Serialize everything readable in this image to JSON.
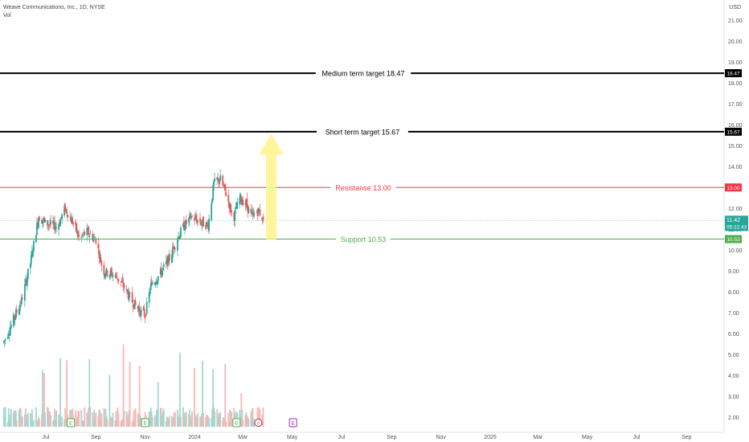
{
  "header": {
    "title": "Weave Communications, Inc., 1D, NYSE",
    "volume_label": "Vol",
    "currency": "USD"
  },
  "chart_data": {
    "type": "candlestick",
    "symbol": "Weave Communications, Inc.",
    "interval": "1D",
    "exchange": "NYSE",
    "y_ticks": [
      2.0,
      3.0,
      4.0,
      5.0,
      6.0,
      7.0,
      8.0,
      9.0,
      10.0,
      11.0,
      12.0,
      13.0,
      14.0,
      15.0,
      16.0,
      17.0,
      18.0,
      19.0,
      20.0,
      21.0
    ],
    "ylim": [
      1.55,
      21.55
    ],
    "x_ticks": [
      "Jul",
      "Sep",
      "Nov",
      "2024",
      "Mar",
      "May",
      "Jul",
      "Sep",
      "Nov",
      "2025",
      "Mar",
      "May",
      "Jul",
      "Sep"
    ],
    "x_tick_dates": [
      "2023-07-01",
      "2023-09-01",
      "2023-11-01",
      "2024-01-01",
      "2024-03-01",
      "2024-05-01",
      "2024-07-01",
      "2024-09-01",
      "2024-11-01",
      "2025-01-01",
      "2025-03-01",
      "2025-05-01",
      "2025-07-01",
      "2025-09-01"
    ],
    "price_path": [
      [
        "2023-05-10",
        5.6
      ],
      [
        "2023-05-20",
        6.5
      ],
      [
        "2023-06-01",
        7.6
      ],
      [
        "2023-06-12",
        9.4
      ],
      [
        "2023-06-22",
        11.6
      ],
      [
        "2023-07-01",
        11.3
      ],
      [
        "2023-07-15",
        11.1
      ],
      [
        "2023-07-25",
        12.0
      ],
      [
        "2023-08-05",
        11.2
      ],
      [
        "2023-08-12",
        10.5
      ],
      [
        "2023-08-20",
        10.9
      ],
      [
        "2023-09-01",
        10.5
      ],
      [
        "2023-09-10",
        9.0
      ],
      [
        "2023-09-25",
        8.8
      ],
      [
        "2023-10-05",
        8.3
      ],
      [
        "2023-10-15",
        7.6
      ],
      [
        "2023-10-25",
        7.1
      ],
      [
        "2023-11-01",
        6.9
      ],
      [
        "2023-11-08",
        8.3
      ],
      [
        "2023-11-20",
        8.9
      ],
      [
        "2023-12-01",
        9.6
      ],
      [
        "2023-12-10",
        10.5
      ],
      [
        "2023-12-18",
        11.1
      ],
      [
        "2023-12-28",
        11.6
      ],
      [
        "2024-01-10",
        11.3
      ],
      [
        "2024-01-18",
        11.2
      ],
      [
        "2024-01-25",
        13.2
      ],
      [
        "2024-02-02",
        13.4
      ],
      [
        "2024-02-10",
        12.6
      ],
      [
        "2024-02-18",
        11.5
      ],
      [
        "2024-02-26",
        12.5
      ],
      [
        "2024-03-05",
        12.2
      ],
      [
        "2024-03-12",
        11.6
      ],
      [
        "2024-03-20",
        11.9
      ],
      [
        "2024-03-27",
        11.4
      ]
    ],
    "volume_bars_approx": true,
    "last_price": "11.42",
    "countdown": "05:22:43",
    "levels": [
      {
        "name": "Medium term target",
        "value": 18.47,
        "label": "Medium term target 18.47",
        "tag": "18.47",
        "color": "#000000"
      },
      {
        "name": "Short term target",
        "value": 15.67,
        "label": "Short term target 15.67",
        "tag": "15.67",
        "color": "#000000"
      },
      {
        "name": "Resistanse",
        "value": 13.0,
        "label": "Resistanse 13.00",
        "tag": "13.00",
        "color": "#f23645"
      },
      {
        "name": "Support",
        "value": 10.53,
        "label": "Support 10.53",
        "tag": "10.53",
        "color": "#4caf50"
      }
    ],
    "arrow": {
      "from": 10.53,
      "to": 15.67,
      "date": "2024-04-05",
      "color": "#fff59d"
    },
    "events": [
      {
        "date": "2023-08-01",
        "kind": "earnings",
        "symbol": "E",
        "color": "#4caf50"
      },
      {
        "date": "2023-11-01",
        "kind": "earnings",
        "symbol": "E",
        "color": "#4caf50"
      },
      {
        "date": "2024-02-22",
        "kind": "earnings",
        "symbol": "E",
        "color": "#4caf50"
      },
      {
        "date": "2024-03-20",
        "kind": "dividend-lightning",
        "symbol": "⚡",
        "color": "#9c27b0"
      },
      {
        "date": "2024-05-02",
        "kind": "earnings-upcoming",
        "symbol": "E",
        "color": "#9c27b0"
      }
    ],
    "colors": {
      "up": "#26a69a",
      "down": "#ef5350",
      "vol_up": "#a5d6cf",
      "vol_down": "#f7b7b4",
      "last_price_tag": "#26a69a"
    }
  }
}
